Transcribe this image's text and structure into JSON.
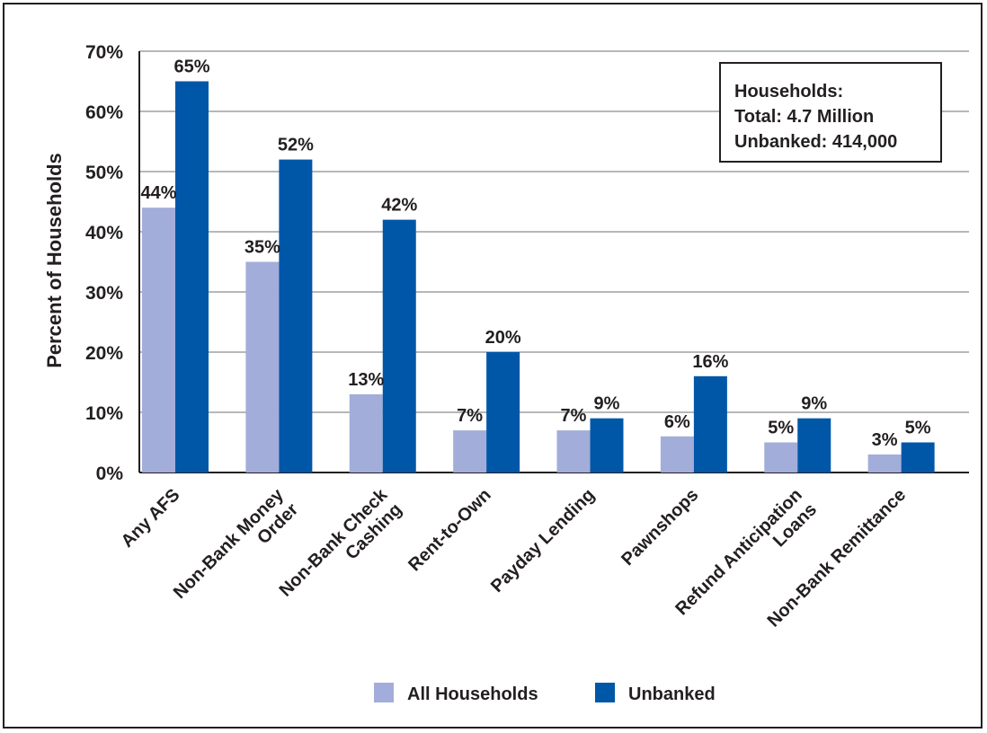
{
  "chart_data": {
    "type": "bar",
    "ylabel": "Percent of Households",
    "xlabel": "",
    "title": "",
    "ylim": [
      0,
      70
    ],
    "yticks": [
      "0%",
      "10%",
      "20%",
      "30%",
      "40%",
      "50%",
      "60%",
      "70%"
    ],
    "grid": true,
    "categories": [
      [
        "Any AFS"
      ],
      [
        "Non-Bank Money",
        "Order"
      ],
      [
        "Non-Bank Check",
        "Cashing"
      ],
      [
        "Rent-to-Own"
      ],
      [
        "Payday Lending"
      ],
      [
        "Pawnshops"
      ],
      [
        "Refund Anticipation",
        "Loans"
      ],
      [
        "Non-Bank Remittance"
      ]
    ],
    "series": [
      {
        "name": "All Households",
        "values": [
          44,
          35,
          13,
          7,
          7,
          6,
          5,
          3
        ],
        "labels": [
          "44%",
          "35%",
          "13%",
          "7%",
          "7%",
          "6%",
          "5%",
          "3%"
        ],
        "color": "#a3add9"
      },
      {
        "name": "Unbanked",
        "values": [
          65,
          52,
          42,
          20,
          9,
          16,
          9,
          5
        ],
        "labels": [
          "65%",
          "52%",
          "42%",
          "20%",
          "9%",
          "16%",
          "9%",
          "5%"
        ],
        "color": "#0057a8"
      }
    ],
    "legend_position": "bottom",
    "annotation": [
      "Households:",
      "Total: 4.7 Million",
      "Unbanked: 414,000"
    ]
  }
}
